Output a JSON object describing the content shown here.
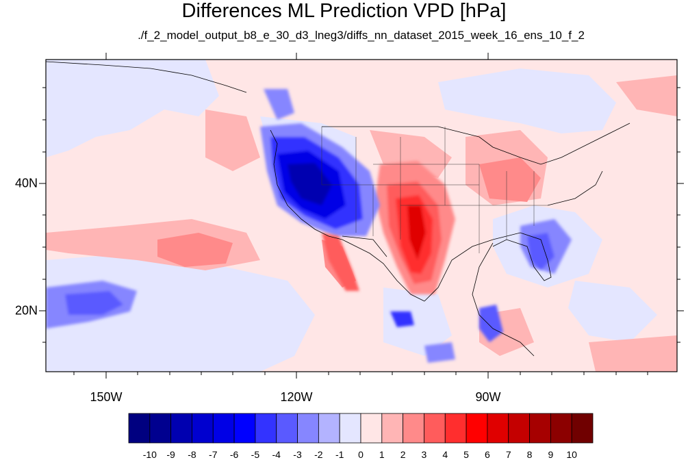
{
  "title": "Differences ML Prediction VPD [hPa]",
  "subtitle": "./f_2_model_output_b8_e_30_d3_lneg3/diffs_nn_dataset_2015_week_16_ens_10_f_2",
  "axes": {
    "longitude_labels": [
      "150W",
      "120W",
      "90W"
    ],
    "latitude_labels": [
      "40N",
      "20N"
    ]
  },
  "colorbar": {
    "labels": [
      "-10",
      "-9",
      "-8",
      "-7",
      "-6",
      "-5",
      "-4",
      "-3",
      "-2",
      "-1",
      "0",
      "1",
      "2",
      "3",
      "4",
      "5",
      "6",
      "7",
      "8",
      "9",
      "10"
    ],
    "colors": [
      "#000080",
      "#00008f",
      "#0000b0",
      "#0000cf",
      "#0000e6",
      "#0000ff",
      "#3333ff",
      "#5a5aff",
      "#8686ff",
      "#b3b3ff",
      "#e4e6ff",
      "#ffe6e6",
      "#ffb5b5",
      "#ff8a8a",
      "#ff5c5c",
      "#ff2e2e",
      "#ff0000",
      "#e00000",
      "#c40000",
      "#a60000",
      "#8c0000",
      "#700000"
    ]
  },
  "colors": {
    "background_positive": "#ffe6e6",
    "background_negative": "#e4e6ff",
    "strong_positive": "#ff2e2e",
    "strong_negative": "#0000e6"
  }
}
